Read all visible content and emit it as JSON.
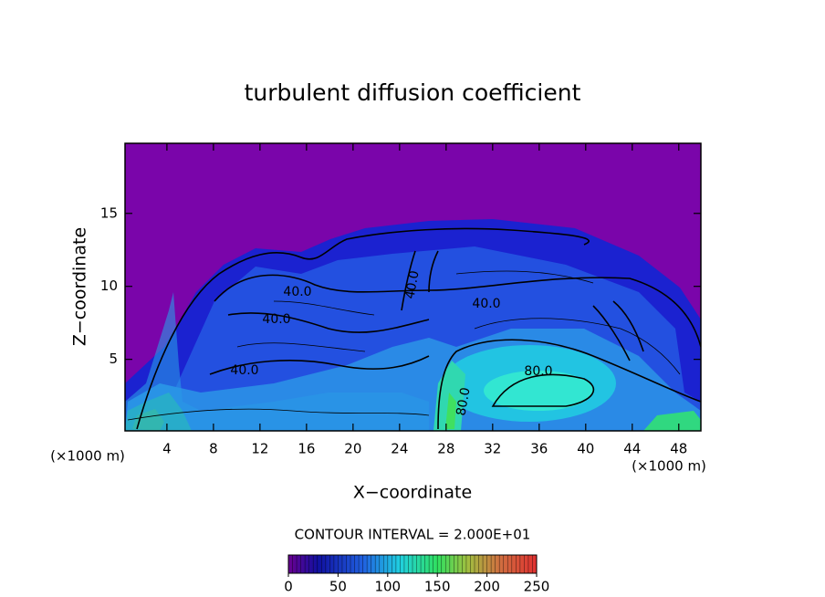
{
  "chart_data": {
    "type": "contour",
    "title": "turbulent diffusion coefficient",
    "xlabel": "X−coordinate",
    "ylabel": "Z−coordinate",
    "x_units": "(×1000 m)",
    "xlim": [
      0.4,
      49.9
    ],
    "xticks": [
      4,
      8,
      12,
      16,
      20,
      24,
      28,
      32,
      36,
      40,
      44,
      48
    ],
    "ylim": [
      0.1,
      19.8
    ],
    "yticks": [
      5,
      10,
      15
    ],
    "contour_labels": [
      "40.0",
      "40.0",
      "40.0",
      "40.0",
      "40.0",
      "80.0",
      "80.0"
    ],
    "contour_interval": "CONTOUR INTERVAL = 2.000E+01",
    "colorbar_lim": [
      0,
      250
    ],
    "colorbar_ticks": [
      0,
      50,
      100,
      150,
      200,
      250
    ]
  }
}
